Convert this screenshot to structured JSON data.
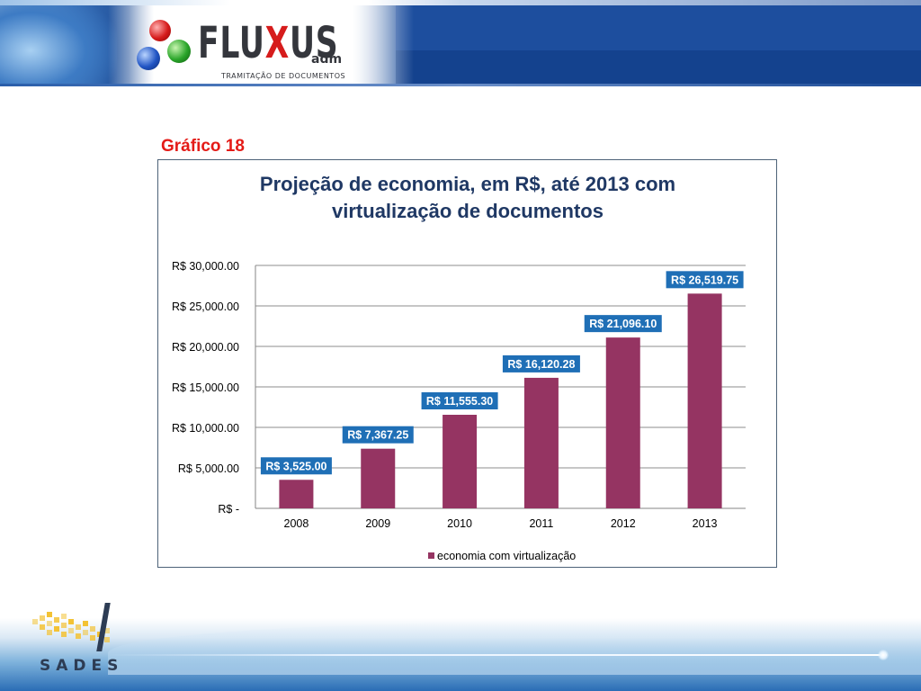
{
  "header": {
    "brand": "FLUXUS",
    "brand_suffix": "adm",
    "tagline": "TRAMITAÇÃO DE DOCUMENTOS"
  },
  "caption": "Gráfico 18",
  "chart_data": {
    "type": "bar",
    "title": "Projeção de economia, em R$, até 2013 com virtualização de documentos",
    "title_lines": [
      "Projeção de economia, em R$, até 2013 com",
      "virtualização de documentos"
    ],
    "categories": [
      "2008",
      "2009",
      "2010",
      "2011",
      "2012",
      "2013"
    ],
    "series": [
      {
        "name": "economia com virtualização",
        "values": [
          3525.0,
          7367.25,
          11555.3,
          16120.28,
          21096.1,
          26519.75
        ],
        "data_labels": [
          "R$ 3,525.00",
          "R$ 7,367.25",
          "R$ 11,555.30",
          "R$ 16,120.28",
          "R$ 21,096.10",
          "R$ 26,519.75"
        ],
        "color": "#953462"
      }
    ],
    "ylim": [
      0,
      30000
    ],
    "y_ticks": [
      0,
      5000,
      10000,
      15000,
      20000,
      25000,
      30000
    ],
    "y_tick_labels": [
      "R$ -",
      "R$ 5,000.00",
      "R$ 10,000.00",
      "R$ 15,000.00",
      "R$ 20,000.00",
      "R$ 25,000.00",
      "R$ 30,000.00"
    ],
    "grid": true,
    "legend": "bottom",
    "label_bg_color": "#1f6fb6",
    "title_color": "#1f3864"
  },
  "footer": {
    "logo_text": "SADES"
  }
}
